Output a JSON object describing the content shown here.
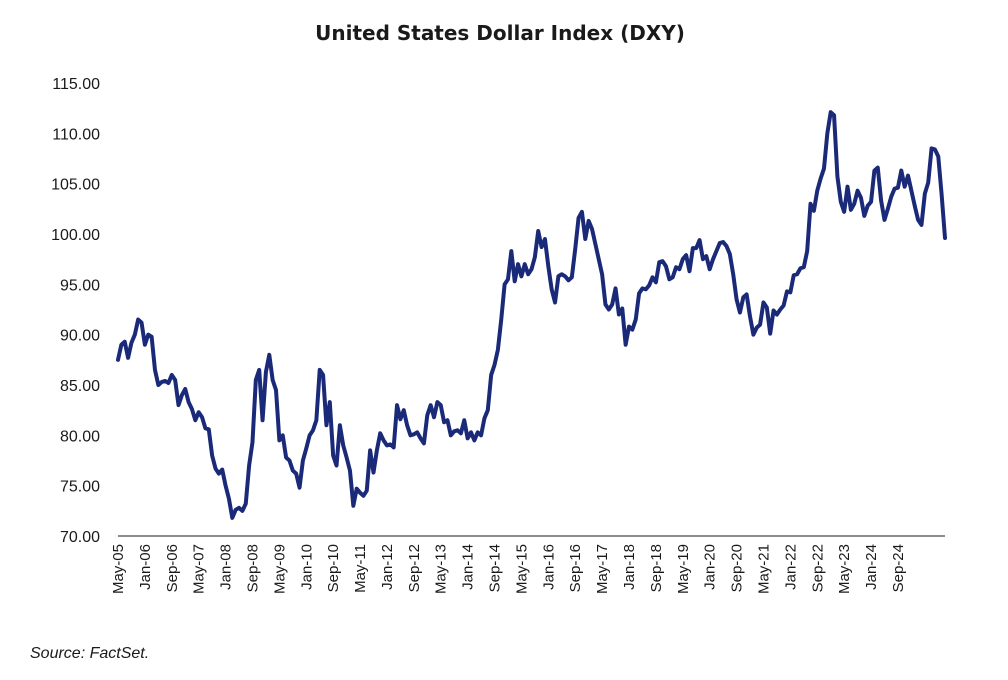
{
  "chart_data": {
    "type": "line",
    "title": "United States Dollar Index (DXY)",
    "xlabel": "",
    "ylabel": "",
    "ylim": [
      70,
      115
    ],
    "y_ticks": [
      "70.00",
      "75.00",
      "80.00",
      "85.00",
      "90.00",
      "95.00",
      "100.00",
      "105.00",
      "110.00",
      "115.00"
    ],
    "y_tick_values": [
      70,
      75,
      80,
      85,
      90,
      95,
      100,
      105,
      110,
      115
    ],
    "x_tick_labels": [
      "May-05",
      "Jan-06",
      "Sep-06",
      "May-07",
      "Jan-08",
      "Sep-08",
      "May-09",
      "Jan-10",
      "Sep-10",
      "May-11",
      "Jan-12",
      "Sep-12",
      "May-13",
      "Jan-14",
      "Sep-14",
      "May-15",
      "Jan-16",
      "Sep-16",
      "May-17",
      "Jan-18",
      "Sep-18",
      "May-19",
      "Jan-20",
      "Sep-20",
      "May-21",
      "Jan-22",
      "Sep-22",
      "May-23",
      "Jan-24",
      "Sep-24"
    ],
    "x_start_index": 0,
    "x_step_months": 8,
    "series_color": "#1b2a78",
    "series": [
      {
        "name": "DXY",
        "start": "May-05",
        "values": [
          87.5,
          89,
          89.3,
          87.7,
          89.2,
          90,
          91.5,
          91.2,
          89,
          90,
          89.8,
          86.5,
          85,
          85.3,
          85.4,
          85.2,
          86,
          85.5,
          83,
          84,
          84.6,
          83.3,
          82.6,
          81.5,
          82.3,
          81.8,
          80.7,
          80.6,
          78,
          76.7,
          76.2,
          76.6,
          75,
          73.7,
          71.8,
          72.6,
          72.8,
          72.5,
          73.2,
          77,
          79.3,
          85.5,
          86.5,
          81.5,
          86.3,
          88,
          85.5,
          84.5,
          79.5,
          80,
          77.8,
          77.5,
          76.5,
          76.2,
          74.8,
          77.5,
          78.7,
          80,
          80.5,
          81.5,
          86.5,
          86,
          81,
          83.3,
          78,
          77,
          81,
          79,
          77.8,
          76.5,
          73,
          74.7,
          74.3,
          74,
          74.5,
          78.5,
          76.3,
          78.5,
          80.2,
          79.5,
          79,
          79.1,
          78.8,
          83,
          81.6,
          82.5,
          81,
          80,
          80.1,
          80.3,
          79.7,
          79.2,
          82,
          83,
          81.8,
          83.3,
          83,
          81.3,
          81.5,
          80,
          80.4,
          80.5,
          80.2,
          81.5,
          79.7,
          80.3,
          79.5,
          80.3,
          80,
          81.7,
          82.5,
          86,
          87,
          88.5,
          91.5,
          95,
          95.5,
          98.3,
          95.3,
          97,
          95.8,
          97,
          96,
          96.5,
          97.7,
          100.3,
          98.7,
          99.5,
          96.8,
          94.5,
          93.2,
          95.8,
          96,
          95.8,
          95.4,
          95.7,
          98.5,
          101.6,
          102.2,
          99.5,
          101.3,
          100.5,
          99,
          97.5,
          96,
          93,
          92.5,
          93,
          94.6,
          92,
          92.6,
          89,
          90.8,
          90.5,
          91.5,
          94.1,
          94.6,
          94.5,
          94.9,
          95.7,
          95.2,
          97.2,
          97.3,
          96.8,
          95.5,
          95.7,
          96.7,
          96.5,
          97.5,
          97.9,
          96.3,
          98.6,
          98.6,
          99.4,
          97.5,
          97.8,
          96.5,
          97.5,
          98.3,
          99.1,
          99.2,
          98.8,
          98,
          96,
          93.5,
          92.2,
          93.7,
          94,
          91.8,
          90,
          90.7,
          91,
          93.2,
          92.7,
          90.1,
          92.4,
          92,
          92.5,
          92.9,
          94.3,
          94.2,
          95.9,
          96,
          96.6,
          96.7,
          98.3,
          103,
          102.3,
          104.3,
          105.5,
          106.5,
          110,
          112.1,
          111.8,
          105.7,
          103.2,
          102.2,
          104.7,
          102.4,
          103,
          104.3,
          103.6,
          101.8,
          102.8,
          103.2,
          106.3,
          106.6,
          103.3,
          101.4,
          102.5,
          103.7,
          104.5,
          104.6,
          106.3,
          104.7,
          105.8,
          104.3,
          102.8,
          101.4,
          100.9,
          104,
          105.1,
          108.5,
          108.4,
          107.7,
          103.9,
          99.6
        ]
      }
    ]
  },
  "source_note": "Source: FactSet."
}
